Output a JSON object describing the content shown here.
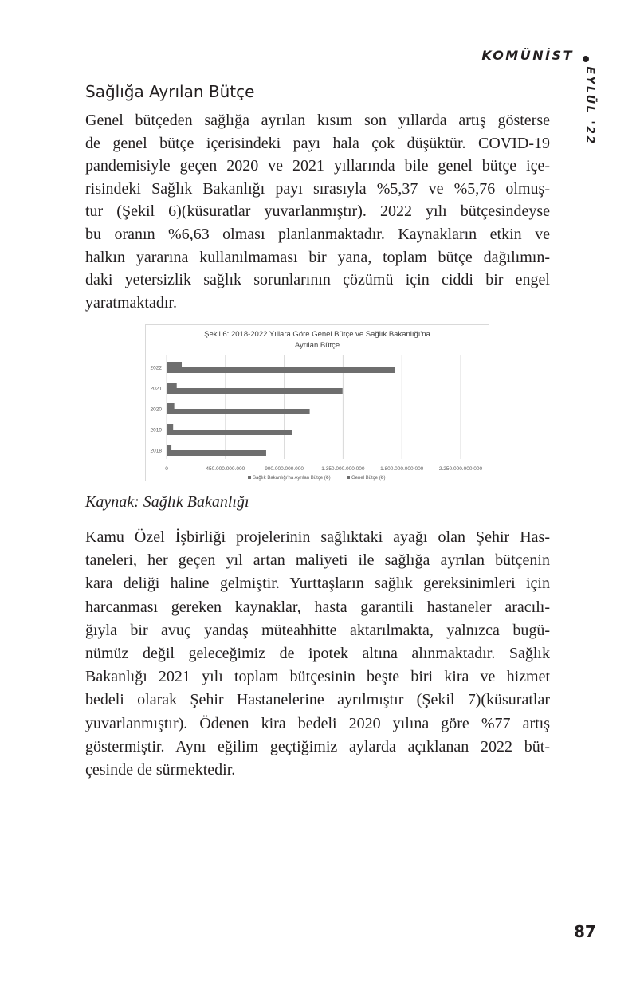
{
  "header": {
    "magazine": "KOMÜNİST",
    "issue": "EYLÜL '22"
  },
  "section_title": "Sağlığa Ayrılan Bütçe",
  "paragraph1": [
    "Genel bütçeden sağlığa ayrılan kısım son yıllarda artış gösterse",
    "de genel bütçe içerisindeki payı hala çok düşüktür. COVID-19",
    "pandemisiyle geçen 2020 ve 2021 yıllarında bile genel bütçe içe-",
    "risindeki Sağlık Bakanlığı payı sırasıyla %5,37 ve %5,76 olmuş-",
    "tur (Şekil 6)(küsuratlar yuvarlanmıştır). 2022 yılı bütçesindeyse",
    "bu oranın %6,63 olması planlanmaktadır. Kaynakların etkin ve",
    "halkın yararına kullanılmaması bir yana, toplam bütçe dağılımın-",
    "daki yetersizlik sağlık sorunlarının çözümü için ciddi bir engel",
    "yaratmaktadır."
  ],
  "chart_data": {
    "type": "bar",
    "orientation": "horizontal",
    "title": "Şekil 6: 2018-2022 Yıllara Göre Genel Bütçe ve Sağlık Bakanlığı'na Ayrılan Bütçe",
    "title_lines": [
      "Şekil 6: 2018-2022 Yıllara Göre Genel Bütçe ve Sağlık Bakanlığı'na",
      "Ayrılan Bütçe"
    ],
    "categories": [
      "2022",
      "2021",
      "2020",
      "2019",
      "2018"
    ],
    "series": [
      {
        "name": "Sağlık Bakanlığı'na Ayrılan Bütçe (₺)",
        "values": [
          116000000000,
          77500000000,
          58800000000,
          50000000000,
          37000000000
        ],
        "color": "#6e6e6e"
      },
      {
        "name": "Genel Bütçe (₺)",
        "values": [
          1750000000000,
          1346000000000,
          1095000000000,
          961000000000,
          762000000000
        ],
        "color": "#6e6e6e"
      }
    ],
    "xlim": [
      0,
      2250000000000
    ],
    "xticks": [
      0,
      450000000000,
      900000000000,
      1350000000000,
      1800000000000,
      2250000000000
    ],
    "xtick_labels": [
      "0",
      "450.000.000.000",
      "900.000.000.000",
      "1.350.000.000.000",
      "1.800.000.000.000",
      "2.250.000.000.000"
    ],
    "grid": true,
    "legend_position": "bottom"
  },
  "caption": "Kaynak: Sağlık Bakanlığı",
  "paragraph2": [
    "Kamu Özel İşbirliği projelerinin sağlıktaki ayağı olan Şehir Has-",
    "taneleri, her geçen yıl artan maliyeti ile sağlığa ayrılan bütçenin",
    "kara deliği haline gelmiştir. Yurttaşların sağlık gereksinimleri için",
    "harcanması gereken kaynaklar, hasta garantili hastaneler aracılı-",
    "ğıyla bir avuç yandaş müteahhitte aktarılmakta, yalnızca bugü-",
    "nümüz değil geleceğimiz de ipotek altına alınmaktadır. Sağlık",
    "Bakanlığı 2021 yılı toplam bütçesinin beşte biri kira ve hizmet",
    "bedeli olarak Şehir Hastanelerine ayrılmıştır (Şekil 7)(küsuratlar",
    "yuvarlanmıştır). Ödenen kira bedeli 2020 yılına göre %77 artış",
    "göstermiştir. Aynı eğilim geçtiğimiz aylarda açıklanan 2022 büt-",
    "çesinde de sürmektedir."
  ],
  "page_number": "87"
}
